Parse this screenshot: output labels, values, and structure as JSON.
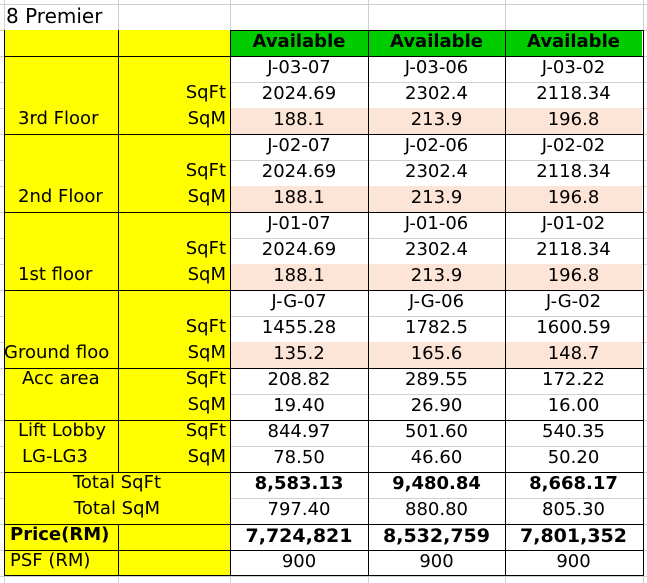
{
  "sheet_title": "8 Premier",
  "columns": [
    {
      "status": "Available",
      "floors": [
        {
          "unit": "J-03-07",
          "sqft": "2024.69",
          "sqm": "188.1"
        },
        {
          "unit": "J-02-07",
          "sqft": "2024.69",
          "sqm": "188.1"
        },
        {
          "unit": "J-01-07",
          "sqft": "2024.69",
          "sqm": "188.1"
        },
        {
          "unit": "J-G-07",
          "sqft": "1455.28",
          "sqm": "135.2"
        }
      ],
      "acc_sqft": "208.82",
      "acc_sqm": "19.40",
      "lift_sqft": "844.97",
      "lift_sqm": "78.50",
      "total_sqft": "8,583.13",
      "total_sqm": "797.40",
      "price": "7,724,821",
      "psf": "900"
    },
    {
      "status": "Available",
      "floors": [
        {
          "unit": "J-03-06",
          "sqft": "2302.4",
          "sqm": "213.9"
        },
        {
          "unit": "J-02-06",
          "sqft": "2302.4",
          "sqm": "213.9"
        },
        {
          "unit": "J-01-06",
          "sqft": "2302.4",
          "sqm": "213.9"
        },
        {
          "unit": "J-G-06",
          "sqft": "1782.5",
          "sqm": "165.6"
        }
      ],
      "acc_sqft": "289.55",
      "acc_sqm": "26.90",
      "lift_sqft": "501.60",
      "lift_sqm": "46.60",
      "total_sqft": "9,480.84",
      "total_sqm": "880.80",
      "price": "8,532,759",
      "psf": "900"
    },
    {
      "status": "Available",
      "floors": [
        {
          "unit": "J-03-02",
          "sqft": "2118.34",
          "sqm": "196.8"
        },
        {
          "unit": "J-02-02",
          "sqft": "2118.34",
          "sqm": "196.8"
        },
        {
          "unit": "J-01-02",
          "sqft": "2118.34",
          "sqm": "196.8"
        },
        {
          "unit": "J-G-02",
          "sqft": "1600.59",
          "sqm": "148.7"
        }
      ],
      "acc_sqft": "172.22",
      "acc_sqm": "16.00",
      "lift_sqft": "540.35",
      "lift_sqm": "50.20",
      "total_sqft": "8,668.17",
      "total_sqm": "805.30",
      "price": "7,801,352",
      "psf": "900"
    }
  ],
  "floor_labels": [
    "3rd Floor",
    "2nd Floor",
    "1st floor",
    "Ground floo"
  ],
  "unit_labels": {
    "sqft": "SqFt",
    "sqm": "SqM"
  },
  "acc_area_label": "Acc area",
  "lift_lobby_label_1": "Lift Lobby",
  "lift_lobby_label_2": "LG-LG3",
  "total_sqft_label": "Total SqFt",
  "total_sqm_label": "Total SqM",
  "price_label": "Price(RM)",
  "psf_label": "PSF (RM)",
  "colors": {
    "label_fill": "#ffff00",
    "status_fill": "#00cc00",
    "sqm_fill": "#fce4d6"
  }
}
